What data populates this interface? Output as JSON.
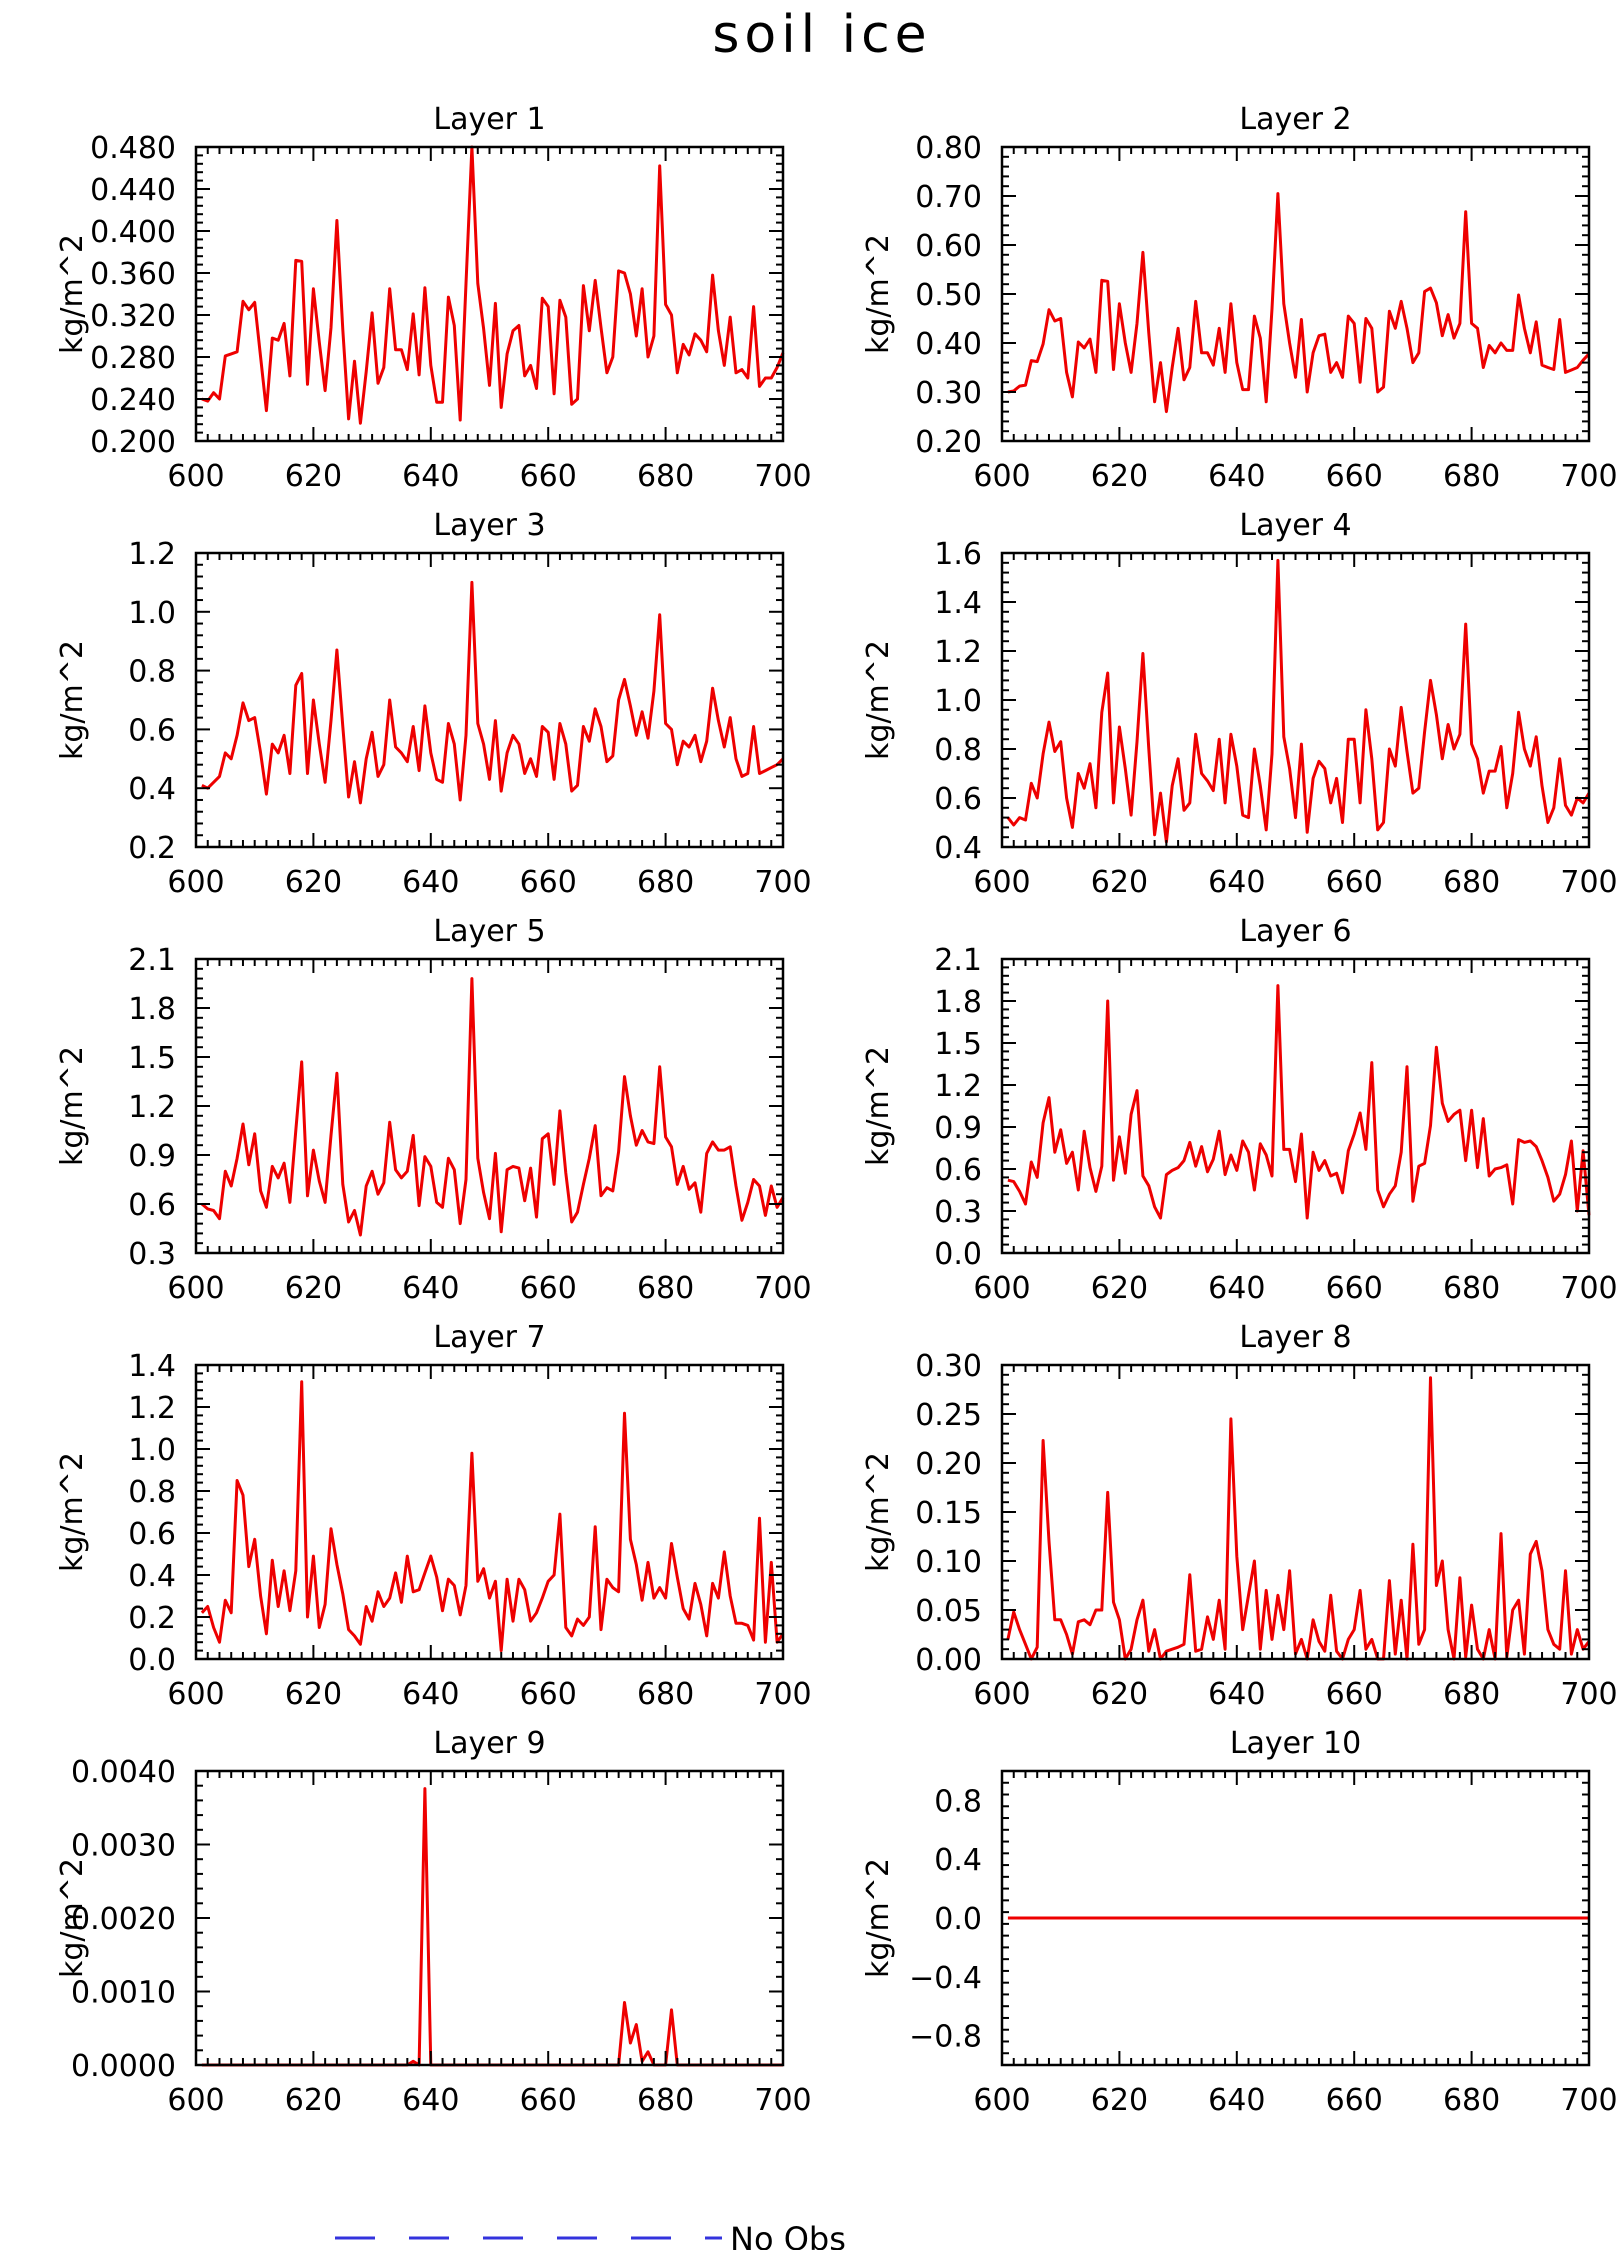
{
  "figure": {
    "title": "soil ice",
    "legend": {
      "label": "No Obs",
      "color": "#3333dd",
      "style": "dashed"
    },
    "colors": {
      "series": "#ee0000",
      "axis": "#000000",
      "background": "#ffffff"
    }
  },
  "chart_data": [
    {
      "type": "line",
      "title": "Layer 1",
      "ylabel": "kg/m^2",
      "xlim": [
        600,
        700
      ],
      "ylim": [
        0.2,
        0.48
      ],
      "xticks": [
        600,
        620,
        640,
        660,
        680,
        700
      ],
      "yticks": [
        0.2,
        0.24,
        0.28,
        0.32,
        0.36,
        0.4,
        0.44,
        0.48
      ],
      "ytick_labels": [
        "0.200",
        "0.240",
        "0.280",
        "0.320",
        "0.360",
        "0.400",
        "0.440",
        "0.480"
      ],
      "x_start": 601,
      "x_step": 1,
      "values": [
        0.24,
        0.238,
        0.246,
        0.24,
        0.281,
        0.283,
        0.285,
        0.333,
        0.325,
        0.332,
        0.28,
        0.229,
        0.298,
        0.296,
        0.312,
        0.262,
        0.372,
        0.371,
        0.254,
        0.345,
        0.294,
        0.248,
        0.308,
        0.41,
        0.306,
        0.221,
        0.276,
        0.217,
        0.266,
        0.322,
        0.255,
        0.27,
        0.345,
        0.287,
        0.287,
        0.268,
        0.321,
        0.263,
        0.346,
        0.272,
        0.237,
        0.237,
        0.337,
        0.31,
        0.22,
        0.35,
        0.48,
        0.35,
        0.307,
        0.253,
        0.331,
        0.232,
        0.283,
        0.305,
        0.31,
        0.262,
        0.272,
        0.25,
        0.336,
        0.328,
        0.245,
        0.334,
        0.318,
        0.235,
        0.24,
        0.348,
        0.305,
        0.353,
        0.308,
        0.265,
        0.28,
        0.362,
        0.36,
        0.34,
        0.3,
        0.345,
        0.28,
        0.3,
        0.462,
        0.33,
        0.32,
        0.265,
        0.292,
        0.282,
        0.302,
        0.296,
        0.285,
        0.358,
        0.305,
        0.272,
        0.318,
        0.265,
        0.268,
        0.26,
        0.328,
        0.252,
        0.26,
        0.26,
        0.27,
        0.284
      ]
    },
    {
      "type": "line",
      "title": "Layer 2",
      "ylabel": "kg/m^2",
      "xlim": [
        600,
        700
      ],
      "ylim": [
        0.2,
        0.8
      ],
      "xticks": [
        600,
        620,
        640,
        660,
        680,
        700
      ],
      "yticks": [
        0.2,
        0.3,
        0.4,
        0.5,
        0.6,
        0.7,
        0.8
      ],
      "ytick_labels": [
        "0.20",
        "0.30",
        "0.40",
        "0.50",
        "0.60",
        "0.70",
        "0.80"
      ],
      "x_start": 601,
      "x_step": 1,
      "values": [
        0.3,
        0.302,
        0.312,
        0.314,
        0.364,
        0.362,
        0.398,
        0.468,
        0.445,
        0.45,
        0.34,
        0.29,
        0.402,
        0.39,
        0.408,
        0.34,
        0.528,
        0.526,
        0.346,
        0.48,
        0.4,
        0.34,
        0.44,
        0.585,
        0.42,
        0.28,
        0.36,
        0.26,
        0.35,
        0.43,
        0.325,
        0.35,
        0.485,
        0.38,
        0.38,
        0.355,
        0.43,
        0.34,
        0.48,
        0.36,
        0.305,
        0.305,
        0.455,
        0.41,
        0.28,
        0.47,
        0.705,
        0.48,
        0.4,
        0.33,
        0.448,
        0.3,
        0.38,
        0.415,
        0.418,
        0.34,
        0.36,
        0.33,
        0.455,
        0.44,
        0.32,
        0.45,
        0.43,
        0.3,
        0.31,
        0.465,
        0.43,
        0.485,
        0.43,
        0.36,
        0.38,
        0.505,
        0.512,
        0.482,
        0.415,
        0.458,
        0.41,
        0.44,
        0.668,
        0.44,
        0.43,
        0.35,
        0.395,
        0.38,
        0.4,
        0.385,
        0.385,
        0.498,
        0.43,
        0.38,
        0.443,
        0.355,
        0.35,
        0.346,
        0.448,
        0.34,
        0.345,
        0.35,
        0.365,
        0.378
      ]
    },
    {
      "type": "line",
      "title": "Layer 3",
      "ylabel": "kg/m^2",
      "xlim": [
        600,
        700
      ],
      "ylim": [
        0.2,
        1.2
      ],
      "xticks": [
        600,
        620,
        640,
        660,
        680,
        700
      ],
      "yticks": [
        0.2,
        0.4,
        0.6,
        0.8,
        1.0,
        1.2
      ],
      "ytick_labels": [
        "0.2",
        "0.4",
        "0.6",
        "0.8",
        "1.0",
        "1.2"
      ],
      "x_start": 601,
      "x_step": 1,
      "values": [
        0.41,
        0.4,
        0.42,
        0.44,
        0.52,
        0.5,
        0.58,
        0.69,
        0.63,
        0.64,
        0.52,
        0.38,
        0.55,
        0.52,
        0.58,
        0.45,
        0.75,
        0.79,
        0.45,
        0.7,
        0.55,
        0.42,
        0.63,
        0.87,
        0.61,
        0.37,
        0.49,
        0.35,
        0.5,
        0.59,
        0.44,
        0.48,
        0.7,
        0.54,
        0.52,
        0.49,
        0.61,
        0.46,
        0.68,
        0.52,
        0.43,
        0.42,
        0.62,
        0.55,
        0.36,
        0.58,
        1.1,
        0.62,
        0.55,
        0.43,
        0.63,
        0.39,
        0.52,
        0.58,
        0.55,
        0.45,
        0.5,
        0.44,
        0.61,
        0.59,
        0.43,
        0.62,
        0.55,
        0.39,
        0.41,
        0.61,
        0.56,
        0.67,
        0.61,
        0.49,
        0.51,
        0.7,
        0.77,
        0.68,
        0.58,
        0.66,
        0.57,
        0.73,
        0.99,
        0.62,
        0.6,
        0.48,
        0.56,
        0.54,
        0.58,
        0.49,
        0.56,
        0.74,
        0.63,
        0.54,
        0.64,
        0.5,
        0.44,
        0.45,
        0.61,
        0.45,
        0.46,
        0.47,
        0.48,
        0.5
      ]
    },
    {
      "type": "line",
      "title": "Layer 4",
      "ylabel": "kg/m^2",
      "xlim": [
        600,
        700
      ],
      "ylim": [
        0.4,
        1.6
      ],
      "xticks": [
        600,
        620,
        640,
        660,
        680,
        700
      ],
      "yticks": [
        0.4,
        0.6,
        0.8,
        1.0,
        1.2,
        1.4,
        1.6
      ],
      "ytick_labels": [
        "0.4",
        "0.6",
        "0.8",
        "1.0",
        "1.2",
        "1.4",
        "1.6"
      ],
      "x_start": 601,
      "x_step": 1,
      "values": [
        0.52,
        0.49,
        0.52,
        0.51,
        0.66,
        0.6,
        0.78,
        0.91,
        0.79,
        0.83,
        0.6,
        0.48,
        0.7,
        0.64,
        0.74,
        0.56,
        0.95,
        1.11,
        0.58,
        0.89,
        0.72,
        0.53,
        0.83,
        1.19,
        0.8,
        0.45,
        0.62,
        0.42,
        0.65,
        0.76,
        0.55,
        0.58,
        0.86,
        0.7,
        0.67,
        0.63,
        0.84,
        0.58,
        0.86,
        0.73,
        0.53,
        0.52,
        0.8,
        0.65,
        0.47,
        0.78,
        1.57,
        0.85,
        0.72,
        0.52,
        0.82,
        0.46,
        0.68,
        0.75,
        0.72,
        0.58,
        0.68,
        0.5,
        0.84,
        0.84,
        0.58,
        0.96,
        0.76,
        0.47,
        0.5,
        0.8,
        0.73,
        0.97,
        0.79,
        0.62,
        0.64,
        0.87,
        1.08,
        0.94,
        0.76,
        0.9,
        0.8,
        0.86,
        1.31,
        0.82,
        0.76,
        0.62,
        0.71,
        0.71,
        0.81,
        0.56,
        0.7,
        0.95,
        0.8,
        0.73,
        0.85,
        0.65,
        0.5,
        0.56,
        0.76,
        0.57,
        0.53,
        0.6,
        0.58,
        0.62
      ]
    },
    {
      "type": "line",
      "title": "Layer 5",
      "ylabel": "kg/m^2",
      "xlim": [
        600,
        700
      ],
      "ylim": [
        0.3,
        2.1
      ],
      "xticks": [
        600,
        620,
        640,
        660,
        680,
        700
      ],
      "yticks": [
        0.3,
        0.6,
        0.9,
        1.2,
        1.5,
        1.8,
        2.1
      ],
      "ytick_labels": [
        "0.3",
        "0.6",
        "0.9",
        "1.2",
        "1.5",
        "1.8",
        "2.1"
      ],
      "x_start": 601,
      "x_step": 1,
      "values": [
        0.6,
        0.57,
        0.56,
        0.51,
        0.8,
        0.71,
        0.88,
        1.09,
        0.84,
        1.03,
        0.68,
        0.58,
        0.83,
        0.76,
        0.85,
        0.61,
        1.05,
        1.47,
        0.65,
        0.93,
        0.74,
        0.61,
        1.02,
        1.4,
        0.72,
        0.49,
        0.56,
        0.41,
        0.71,
        0.8,
        0.66,
        0.73,
        1.1,
        0.81,
        0.76,
        0.8,
        1.02,
        0.59,
        0.89,
        0.83,
        0.61,
        0.58,
        0.88,
        0.81,
        0.48,
        0.75,
        1.98,
        0.88,
        0.67,
        0.51,
        0.91,
        0.43,
        0.81,
        0.83,
        0.82,
        0.62,
        0.82,
        0.52,
        1.0,
        1.03,
        0.72,
        1.17,
        0.79,
        0.49,
        0.55,
        0.72,
        0.88,
        1.08,
        0.65,
        0.7,
        0.68,
        0.92,
        1.38,
        1.14,
        0.96,
        1.05,
        0.98,
        0.97,
        1.44,
        1.01,
        0.95,
        0.72,
        0.83,
        0.69,
        0.73,
        0.55,
        0.91,
        0.98,
        0.93,
        0.93,
        0.95,
        0.71,
        0.5,
        0.61,
        0.75,
        0.71,
        0.53,
        0.71,
        0.58,
        0.64
      ]
    },
    {
      "type": "line",
      "title": "Layer 6",
      "ylabel": "kg/m^2",
      "xlim": [
        600,
        700
      ],
      "ylim": [
        0.0,
        2.1
      ],
      "xticks": [
        600,
        620,
        640,
        660,
        680,
        700
      ],
      "yticks": [
        0.0,
        0.3,
        0.6,
        0.9,
        1.2,
        1.5,
        1.8,
        2.1
      ],
      "ytick_labels": [
        "0.0",
        "0.3",
        "0.6",
        "0.9",
        "1.2",
        "1.5",
        "1.8",
        "2.1"
      ],
      "x_start": 601,
      "x_step": 1,
      "values": [
        0.52,
        0.51,
        0.44,
        0.35,
        0.65,
        0.54,
        0.93,
        1.11,
        0.72,
        0.88,
        0.64,
        0.72,
        0.45,
        0.87,
        0.61,
        0.44,
        0.62,
        1.8,
        0.52,
        0.83,
        0.57,
        0.99,
        1.16,
        0.55,
        0.48,
        0.33,
        0.25,
        0.56,
        0.59,
        0.61,
        0.66,
        0.79,
        0.62,
        0.76,
        0.58,
        0.67,
        0.87,
        0.56,
        0.7,
        0.59,
        0.8,
        0.72,
        0.45,
        0.78,
        0.7,
        0.55,
        1.91,
        0.74,
        0.74,
        0.51,
        0.85,
        0.25,
        0.72,
        0.59,
        0.66,
        0.55,
        0.57,
        0.43,
        0.73,
        0.85,
        1.0,
        0.74,
        1.36,
        0.45,
        0.33,
        0.42,
        0.48,
        0.72,
        1.33,
        0.37,
        0.62,
        0.64,
        0.91,
        1.47,
        1.07,
        0.94,
        0.99,
        1.02,
        0.66,
        1.02,
        0.61,
        0.96,
        0.55,
        0.6,
        0.61,
        0.63,
        0.35,
        0.81,
        0.79,
        0.8,
        0.76,
        0.66,
        0.54,
        0.37,
        0.42,
        0.56,
        0.8,
        0.3,
        0.73,
        0.27
      ]
    },
    {
      "type": "line",
      "title": "Layer 7",
      "ylabel": "kg/m^2",
      "xlim": [
        600,
        700
      ],
      "ylim": [
        0.0,
        1.4
      ],
      "xticks": [
        600,
        620,
        640,
        660,
        680,
        700
      ],
      "yticks": [
        0.0,
        0.2,
        0.4,
        0.6,
        0.8,
        1.0,
        1.2,
        1.4
      ],
      "ytick_labels": [
        "0.0",
        "0.2",
        "0.4",
        "0.6",
        "0.8",
        "1.0",
        "1.2",
        "1.4"
      ],
      "x_start": 601,
      "x_step": 1,
      "values": [
        0.22,
        0.25,
        0.15,
        0.08,
        0.28,
        0.22,
        0.85,
        0.78,
        0.44,
        0.57,
        0.3,
        0.12,
        0.47,
        0.25,
        0.42,
        0.23,
        0.42,
        1.32,
        0.2,
        0.49,
        0.15,
        0.26,
        0.62,
        0.45,
        0.31,
        0.14,
        0.11,
        0.07,
        0.25,
        0.18,
        0.32,
        0.25,
        0.29,
        0.41,
        0.27,
        0.49,
        0.32,
        0.33,
        0.41,
        0.49,
        0.39,
        0.23,
        0.38,
        0.35,
        0.21,
        0.35,
        0.98,
        0.37,
        0.43,
        0.29,
        0.37,
        0.04,
        0.38,
        0.18,
        0.38,
        0.33,
        0.18,
        0.22,
        0.29,
        0.37,
        0.4,
        0.69,
        0.15,
        0.11,
        0.19,
        0.16,
        0.2,
        0.63,
        0.14,
        0.38,
        0.34,
        0.32,
        1.17,
        0.57,
        0.45,
        0.28,
        0.46,
        0.29,
        0.34,
        0.29,
        0.55,
        0.39,
        0.24,
        0.19,
        0.36,
        0.26,
        0.11,
        0.36,
        0.29,
        0.51,
        0.3,
        0.17,
        0.17,
        0.16,
        0.09,
        0.67,
        0.08,
        0.46,
        0.08,
        0.12
      ]
    },
    {
      "type": "line",
      "title": "Layer 8",
      "ylabel": "kg/m^2",
      "xlim": [
        600,
        700
      ],
      "ylim": [
        0.0,
        0.3
      ],
      "xticks": [
        600,
        620,
        640,
        660,
        680,
        700
      ],
      "yticks": [
        0.0,
        0.05,
        0.1,
        0.15,
        0.2,
        0.25,
        0.3
      ],
      "ytick_labels": [
        "0.00",
        "0.05",
        "0.10",
        "0.15",
        "0.20",
        "0.25",
        "0.30"
      ],
      "x_start": 601,
      "x_step": 1,
      "values": [
        0.02,
        0.048,
        0.03,
        0.015,
        0.0,
        0.012,
        0.223,
        0.12,
        0.04,
        0.04,
        0.025,
        0.005,
        0.038,
        0.04,
        0.035,
        0.05,
        0.05,
        0.17,
        0.058,
        0.04,
        0.0,
        0.01,
        0.04,
        0.06,
        0.008,
        0.03,
        0.0,
        0.008,
        0.01,
        0.012,
        0.015,
        0.086,
        0.008,
        0.01,
        0.043,
        0.02,
        0.06,
        0.01,
        0.245,
        0.105,
        0.03,
        0.065,
        0.1,
        0.01,
        0.07,
        0.02,
        0.065,
        0.03,
        0.09,
        0.005,
        0.02,
        0.0,
        0.04,
        0.018,
        0.008,
        0.065,
        0.008,
        0.0,
        0.02,
        0.03,
        0.07,
        0.01,
        0.02,
        0.0,
        0.0,
        0.08,
        0.005,
        0.06,
        0.0,
        0.117,
        0.015,
        0.03,
        0.287,
        0.075,
        0.1,
        0.03,
        0.0,
        0.083,
        0.002,
        0.055,
        0.01,
        0.0,
        0.03,
        0.0,
        0.128,
        0.002,
        0.05,
        0.06,
        0.005,
        0.107,
        0.12,
        0.09,
        0.03,
        0.015,
        0.01,
        0.09,
        0.005,
        0.03,
        0.01,
        0.018
      ]
    },
    {
      "type": "line",
      "title": "Layer 9",
      "ylabel": "kg/m^2",
      "xlim": [
        600,
        700
      ],
      "ylim": [
        0.0,
        0.004
      ],
      "xticks": [
        600,
        620,
        640,
        660,
        680,
        700
      ],
      "yticks": [
        0.0,
        0.001,
        0.002,
        0.003,
        0.004
      ],
      "ytick_labels": [
        "0.0000",
        "0.0010",
        "0.0020",
        "0.0030",
        "0.0040"
      ],
      "x_start": 601,
      "x_step": 1,
      "values": [
        0,
        0,
        0,
        0,
        0,
        0,
        0,
        0,
        0,
        0,
        0,
        0,
        0,
        0,
        0,
        0,
        0,
        0,
        0,
        0,
        0,
        0,
        0,
        0,
        0,
        0,
        0,
        0,
        0,
        0,
        0,
        0,
        0,
        0,
        0,
        0,
        5e-05,
        0,
        0.00376,
        0,
        0,
        0,
        0,
        0,
        0,
        0,
        0,
        0,
        0,
        0,
        0,
        0,
        0,
        0,
        0,
        0,
        0,
        0,
        0,
        0,
        0,
        0,
        0,
        0,
        0,
        0,
        0,
        0,
        0,
        0,
        0,
        0,
        0.00085,
        0.0003,
        0.00055,
        5e-05,
        0.00018,
        0,
        0,
        0,
        0.00075,
        0,
        0,
        0,
        0,
        0,
        0,
        0,
        0,
        0,
        0,
        0,
        0,
        0,
        0,
        0,
        0,
        0,
        0,
        0
      ]
    },
    {
      "type": "line",
      "title": "Layer 10",
      "ylabel": "kg/m^2",
      "xlim": [
        600,
        700
      ],
      "ylim": [
        -1.0,
        1.0
      ],
      "xticks": [
        600,
        620,
        640,
        660,
        680,
        700
      ],
      "yticks": [
        -0.8,
        -0.4,
        0.0,
        0.4,
        0.8
      ],
      "ytick_labels": [
        "−0.8",
        "−0.4",
        "0.0",
        "0.4",
        "0.8"
      ],
      "x_start": 601,
      "x_step": 1,
      "values": [
        0,
        0,
        0,
        0,
        0,
        0,
        0,
        0,
        0,
        0,
        0,
        0,
        0,
        0,
        0,
        0,
        0,
        0,
        0,
        0,
        0,
        0,
        0,
        0,
        0,
        0,
        0,
        0,
        0,
        0,
        0,
        0,
        0,
        0,
        0,
        0,
        0,
        0,
        0,
        0,
        0,
        0,
        0,
        0,
        0,
        0,
        0,
        0,
        0,
        0,
        0,
        0,
        0,
        0,
        0,
        0,
        0,
        0,
        0,
        0,
        0,
        0,
        0,
        0,
        0,
        0,
        0,
        0,
        0,
        0,
        0,
        0,
        0,
        0,
        0,
        0,
        0,
        0,
        0,
        0,
        0,
        0,
        0,
        0,
        0,
        0,
        0,
        0,
        0,
        0,
        0,
        0,
        0,
        0,
        0,
        0,
        0,
        0,
        0,
        0
      ]
    }
  ]
}
